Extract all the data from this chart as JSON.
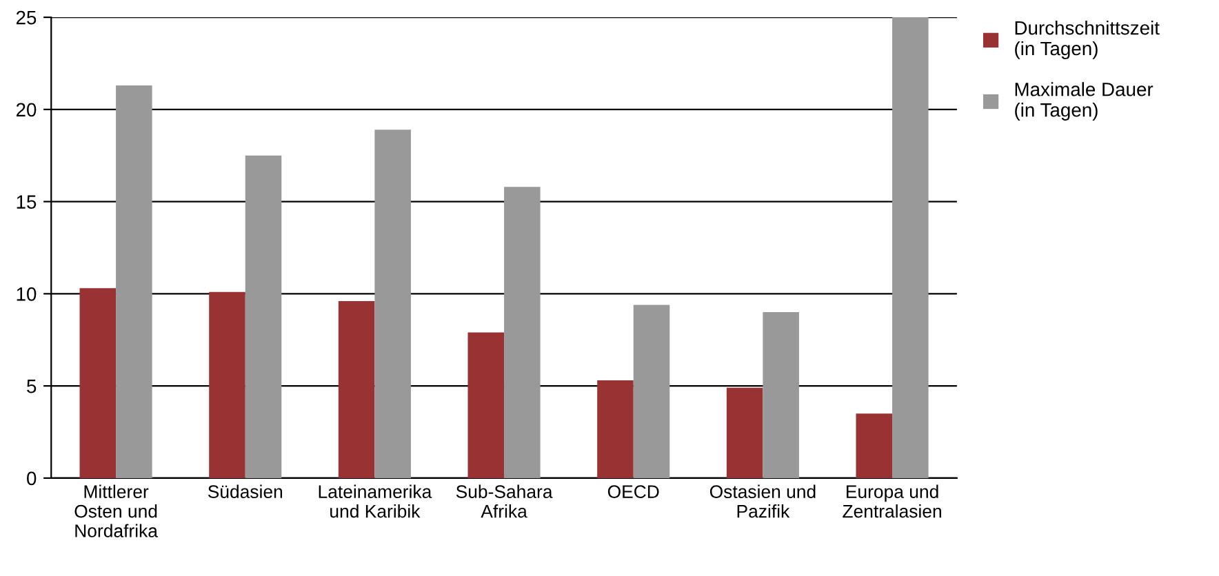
{
  "chart_data": {
    "type": "bar",
    "categories": [
      "Mittlerer\nOsten und\nNordafrika",
      "Südasien",
      "Lateinamerika\nund Karibik",
      "Sub-Sahara\nAfrika",
      "OECD",
      "Ostasien und\nPazifik",
      "Europa und\nZentralasien"
    ],
    "series": [
      {
        "name": "Durchschnittszeit\n(in Tagen)",
        "color": "#993333",
        "values": [
          10.3,
          10.1,
          9.6,
          7.9,
          5.3,
          4.9,
          3.5
        ]
      },
      {
        "name": "Maximale Dauer\n(in Tagen)",
        "color": "#999999",
        "values": [
          21.3,
          17.5,
          18.9,
          15.8,
          9.4,
          9.0,
          25.0
        ]
      }
    ],
    "ylim": [
      0,
      25
    ],
    "yticks": [
      0,
      5,
      10,
      15,
      20,
      25
    ],
    "grid": "y",
    "legend": "top right"
  }
}
